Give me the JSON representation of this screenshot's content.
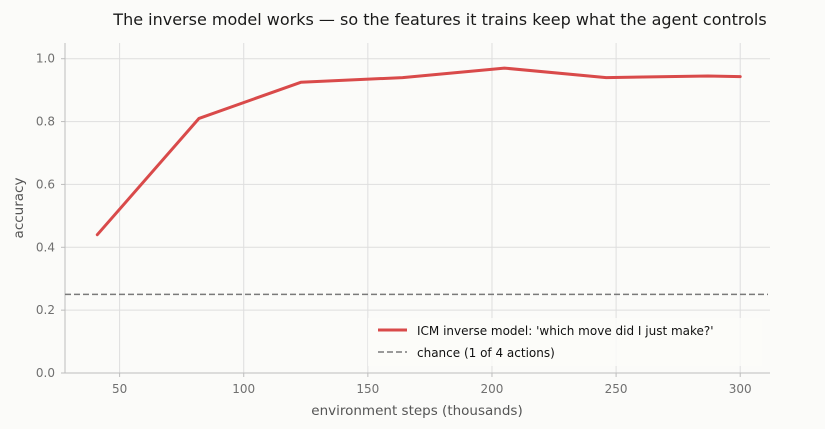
{
  "chart_data": {
    "type": "line",
    "title": "The inverse model works — so the features it trains keep what the agent controls",
    "xlabel": "environment steps (thousands)",
    "ylabel": "accuracy",
    "xlim": [
      28,
      312
    ],
    "ylim": [
      0,
      1.05
    ],
    "xticks": [
      50,
      100,
      150,
      200,
      250,
      300
    ],
    "yticks": [
      0.0,
      0.2,
      0.4,
      0.6,
      0.8,
      1.0
    ],
    "grid": true,
    "legend_position": "lower-right",
    "series": [
      {
        "name": "ICM inverse model: 'which move did I just make?'",
        "color": "#d94a4a",
        "style": "solid",
        "x": [
          41,
          82,
          123,
          164,
          205,
          246,
          287,
          300
        ],
        "y": [
          0.44,
          0.81,
          0.925,
          0.94,
          0.97,
          0.94,
          0.945,
          0.943
        ]
      },
      {
        "name": "chance (1 of 4 actions)",
        "color": "#7a7a7a",
        "style": "dashed",
        "hline": 0.25
      }
    ]
  }
}
